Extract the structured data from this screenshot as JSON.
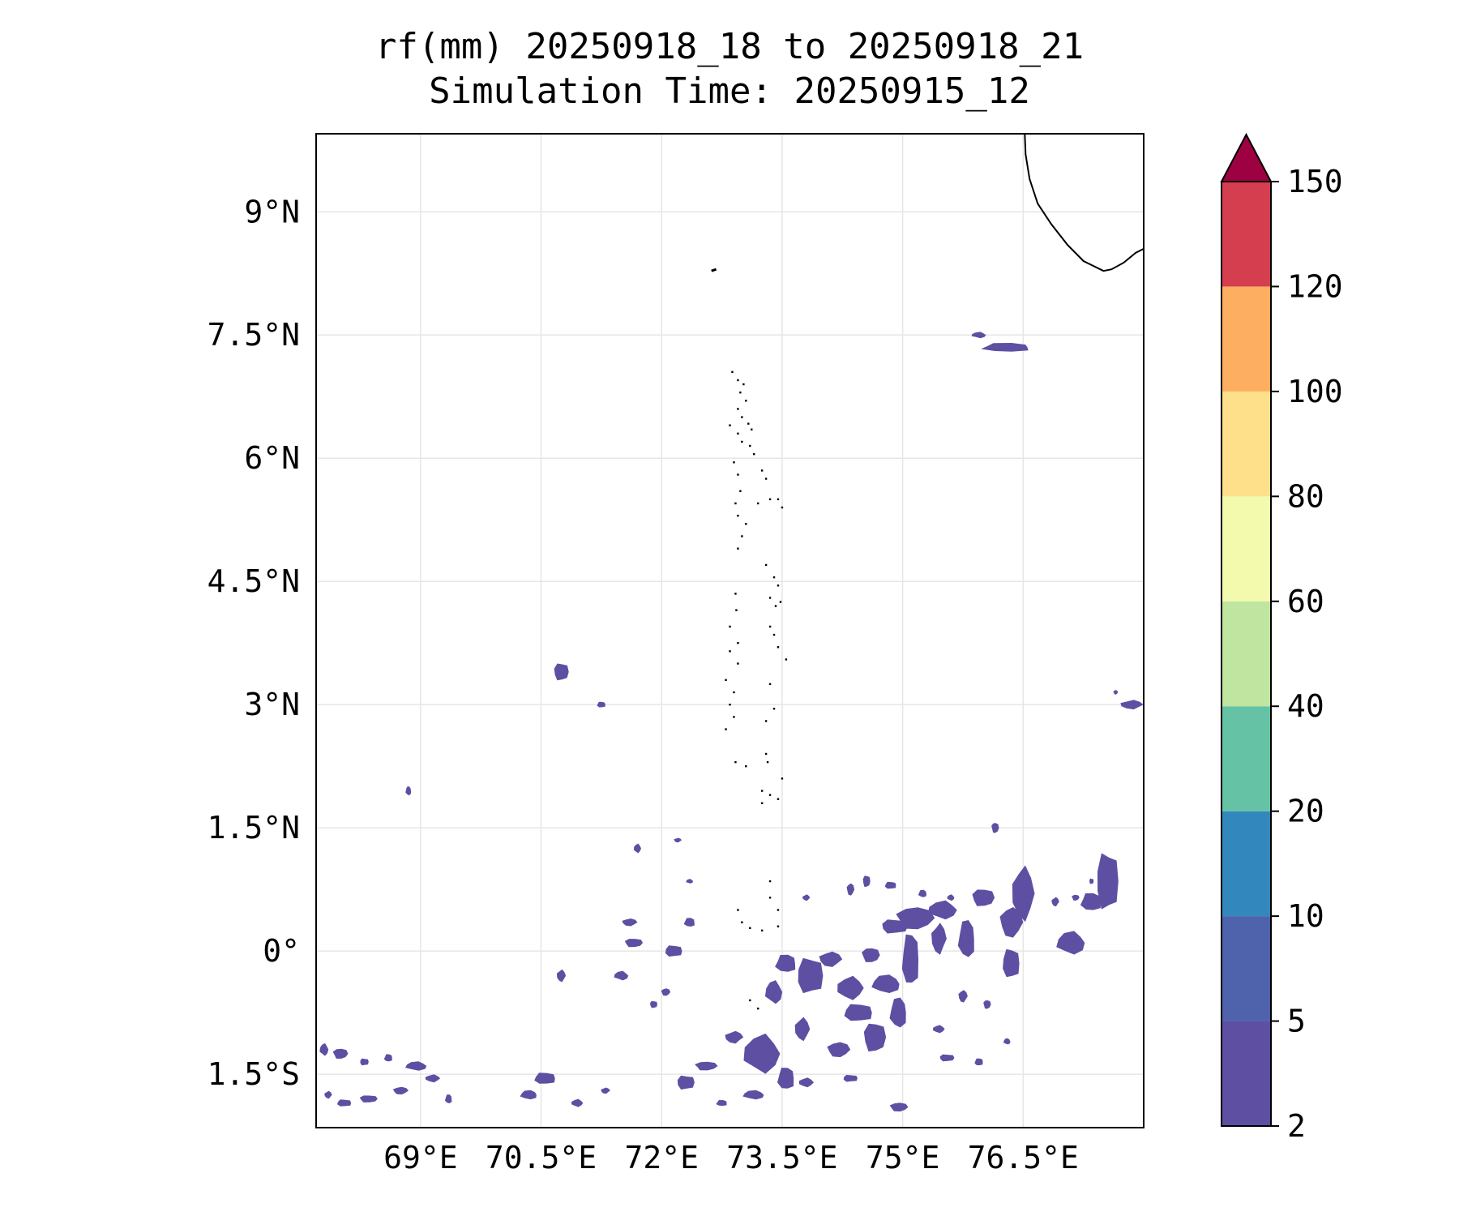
{
  "title": {
    "line1": "rf(mm) 20250918_18 to 20250918_21",
    "line2": "Simulation Time: 20250915_12"
  },
  "map": {
    "lon_range": [
      67.7,
      78.0
    ],
    "lat_range": [
      -2.15,
      9.95
    ],
    "gridlines": true,
    "lon_ticks": [
      {
        "value": 69.0,
        "label": "69°E"
      },
      {
        "value": 70.5,
        "label": "70.5°E"
      },
      {
        "value": 72.0,
        "label": "72°E"
      },
      {
        "value": 73.5,
        "label": "73.5°E"
      },
      {
        "value": 75.0,
        "label": "75°E"
      },
      {
        "value": 76.5,
        "label": "76.5°E"
      }
    ],
    "lat_ticks": [
      {
        "value": 9.0,
        "label": "9°N"
      },
      {
        "value": 7.5,
        "label": "7.5°N"
      },
      {
        "value": 6.0,
        "label": "6°N"
      },
      {
        "value": 4.5,
        "label": "4.5°N"
      },
      {
        "value": 3.0,
        "label": "3°N"
      },
      {
        "value": 1.5,
        "label": "1.5°N"
      },
      {
        "value": 0.0,
        "label": "0°"
      },
      {
        "value": -1.5,
        "label": "1.5°S"
      }
    ],
    "coastline_india": [
      [
        76.52,
        9.95
      ],
      [
        76.53,
        9.7
      ],
      [
        76.58,
        9.4
      ],
      [
        76.68,
        9.1
      ],
      [
        76.85,
        8.85
      ],
      [
        77.05,
        8.6
      ],
      [
        77.25,
        8.4
      ],
      [
        77.5,
        8.28
      ],
      [
        77.6,
        8.3
      ],
      [
        77.75,
        8.38
      ],
      [
        77.9,
        8.5
      ],
      [
        78.0,
        8.55
      ]
    ],
    "coastline_lakshadweep": [
      [
        72.62,
        8.28
      ],
      [
        72.68,
        8.3
      ]
    ],
    "coastline_maldives_islands": [
      [
        72.88,
        7.05
      ],
      [
        72.95,
        6.95
      ],
      [
        73.02,
        6.9
      ],
      [
        72.98,
        6.8
      ],
      [
        73.05,
        6.7
      ],
      [
        72.95,
        6.6
      ],
      [
        73.0,
        6.5
      ],
      [
        73.08,
        6.42
      ],
      [
        73.12,
        6.35
      ],
      [
        72.85,
        6.4
      ],
      [
        72.95,
        6.3
      ],
      [
        73.0,
        6.2
      ],
      [
        73.1,
        6.15
      ],
      [
        73.15,
        6.05
      ],
      [
        72.9,
        5.95
      ],
      [
        72.95,
        5.8
      ],
      [
        72.98,
        5.6
      ],
      [
        72.92,
        5.45
      ],
      [
        73.25,
        5.85
      ],
      [
        73.3,
        5.75
      ],
      [
        73.35,
        5.5
      ],
      [
        73.45,
        5.5
      ],
      [
        73.5,
        5.4
      ],
      [
        73.2,
        5.45
      ],
      [
        72.95,
        5.3
      ],
      [
        73.05,
        5.2
      ],
      [
        73.0,
        5.05
      ],
      [
        72.95,
        4.9
      ],
      [
        73.3,
        4.7
      ],
      [
        73.4,
        4.55
      ],
      [
        73.45,
        4.45
      ],
      [
        73.35,
        4.3
      ],
      [
        73.42,
        4.2
      ],
      [
        73.48,
        4.25
      ],
      [
        72.92,
        4.35
      ],
      [
        72.93,
        4.15
      ],
      [
        72.85,
        3.95
      ],
      [
        72.95,
        3.75
      ],
      [
        72.85,
        3.65
      ],
      [
        72.95,
        3.5
      ],
      [
        73.35,
        3.95
      ],
      [
        73.4,
        3.85
      ],
      [
        73.45,
        3.7
      ],
      [
        73.55,
        3.55
      ],
      [
        72.8,
        3.3
      ],
      [
        72.9,
        3.15
      ],
      [
        72.85,
        3.0
      ],
      [
        72.9,
        2.85
      ],
      [
        72.8,
        2.7
      ],
      [
        73.3,
        2.8
      ],
      [
        73.4,
        2.95
      ],
      [
        73.35,
        3.25
      ],
      [
        72.92,
        2.3
      ],
      [
        73.05,
        2.25
      ],
      [
        73.3,
        2.4
      ],
      [
        73.32,
        2.3
      ],
      [
        73.25,
        1.95
      ],
      [
        73.35,
        1.9
      ],
      [
        73.45,
        1.85
      ],
      [
        73.5,
        2.1
      ],
      [
        73.25,
        1.8
      ],
      [
        73.35,
        0.85
      ],
      [
        73.35,
        0.65
      ],
      [
        73.45,
        0.5
      ],
      [
        72.95,
        0.5
      ],
      [
        73.0,
        0.35
      ],
      [
        73.1,
        0.28
      ],
      [
        73.25,
        0.25
      ],
      [
        73.45,
        0.3
      ],
      [
        73.1,
        -0.6
      ],
      [
        73.2,
        -0.7
      ]
    ]
  },
  "rain_patches": [
    [
      76.3,
      7.35,
      0.35,
      0.06
    ],
    [
      75.95,
      7.5,
      0.1,
      0.04
    ],
    [
      77.85,
      3.0,
      0.15,
      0.06
    ],
    [
      77.65,
      3.15,
      0.03,
      0.03
    ],
    [
      70.75,
      3.4,
      0.1,
      0.12
    ],
    [
      71.25,
      3.0,
      0.06,
      0.04
    ],
    [
      68.85,
      1.95,
      0.04,
      0.06
    ],
    [
      71.7,
      1.25,
      0.05,
      0.06
    ],
    [
      72.2,
      1.35,
      0.05,
      0.03
    ],
    [
      76.15,
      1.5,
      0.05,
      0.07
    ],
    [
      77.55,
      0.85,
      0.15,
      0.4
    ],
    [
      77.35,
      0.6,
      0.15,
      0.12
    ],
    [
      77.1,
      0.1,
      0.2,
      0.15
    ],
    [
      76.5,
      0.7,
      0.15,
      0.35
    ],
    [
      76.35,
      0.35,
      0.15,
      0.2
    ],
    [
      76.0,
      0.65,
      0.15,
      0.12
    ],
    [
      76.35,
      -0.15,
      0.12,
      0.2
    ],
    [
      75.8,
      0.15,
      0.12,
      0.25
    ],
    [
      75.5,
      0.5,
      0.2,
      0.12
    ],
    [
      75.45,
      0.15,
      0.1,
      0.2
    ],
    [
      75.15,
      0.4,
      0.25,
      0.15
    ],
    [
      74.9,
      0.3,
      0.18,
      0.1
    ],
    [
      75.1,
      -0.1,
      0.12,
      0.35
    ],
    [
      74.8,
      -0.4,
      0.2,
      0.12
    ],
    [
      74.35,
      -0.45,
      0.18,
      0.15
    ],
    [
      74.1,
      -0.1,
      0.15,
      0.1
    ],
    [
      74.6,
      -0.05,
      0.12,
      0.1
    ],
    [
      73.85,
      -0.3,
      0.18,
      0.25
    ],
    [
      73.55,
      -0.15,
      0.15,
      0.12
    ],
    [
      73.4,
      -0.5,
      0.12,
      0.15
    ],
    [
      73.75,
      -0.95,
      0.1,
      0.15
    ],
    [
      74.2,
      -1.2,
      0.15,
      0.1
    ],
    [
      74.65,
      -1.05,
      0.15,
      0.2
    ],
    [
      74.45,
      -0.75,
      0.2,
      0.12
    ],
    [
      74.95,
      -0.75,
      0.12,
      0.2
    ],
    [
      73.25,
      -1.25,
      0.25,
      0.25
    ],
    [
      72.9,
      -1.05,
      0.12,
      0.08
    ],
    [
      72.55,
      -1.4,
      0.15,
      0.06
    ],
    [
      72.3,
      -1.6,
      0.12,
      0.1
    ],
    [
      73.55,
      -1.55,
      0.12,
      0.15
    ],
    [
      73.15,
      -1.75,
      0.15,
      0.06
    ],
    [
      73.8,
      -1.6,
      0.1,
      0.06
    ],
    [
      71.6,
      0.35,
      0.1,
      0.05
    ],
    [
      71.65,
      0.1,
      0.12,
      0.06
    ],
    [
      72.15,
      0.0,
      0.12,
      0.08
    ],
    [
      72.35,
      0.35,
      0.08,
      0.06
    ],
    [
      71.5,
      -0.3,
      0.1,
      0.06
    ],
    [
      70.75,
      -0.3,
      0.06,
      0.08
    ],
    [
      72.05,
      -0.5,
      0.06,
      0.05
    ],
    [
      71.9,
      -0.65,
      0.05,
      0.05
    ],
    [
      70.55,
      -1.55,
      0.15,
      0.08
    ],
    [
      70.35,
      -1.75,
      0.12,
      0.06
    ],
    [
      70.95,
      -1.85,
      0.08,
      0.05
    ],
    [
      71.3,
      -1.7,
      0.06,
      0.04
    ],
    [
      68.0,
      -1.25,
      0.1,
      0.07
    ],
    [
      68.3,
      -1.35,
      0.06,
      0.05
    ],
    [
      68.6,
      -1.3,
      0.06,
      0.05
    ],
    [
      68.95,
      -1.4,
      0.15,
      0.06
    ],
    [
      69.15,
      -1.55,
      0.1,
      0.05
    ],
    [
      68.75,
      -1.7,
      0.1,
      0.05
    ],
    [
      68.35,
      -1.8,
      0.12,
      0.05
    ],
    [
      68.05,
      -1.85,
      0.1,
      0.05
    ],
    [
      69.35,
      -1.8,
      0.05,
      0.06
    ],
    [
      67.8,
      -1.2,
      0.06,
      0.08
    ],
    [
      67.85,
      -1.75,
      0.05,
      0.05
    ],
    [
      74.95,
      -1.9,
      0.12,
      0.06
    ],
    [
      75.55,
      -1.3,
      0.1,
      0.05
    ],
    [
      75.95,
      -1.35,
      0.06,
      0.05
    ],
    [
      76.3,
      -1.1,
      0.05,
      0.04
    ],
    [
      75.45,
      -0.95,
      0.08,
      0.05
    ],
    [
      75.75,
      -0.55,
      0.06,
      0.08
    ],
    [
      76.05,
      -0.65,
      0.05,
      0.06
    ],
    [
      74.35,
      -1.55,
      0.1,
      0.05
    ],
    [
      72.75,
      -1.85,
      0.08,
      0.04
    ],
    [
      72.35,
      0.85,
      0.05,
      0.03
    ],
    [
      73.8,
      0.65,
      0.05,
      0.04
    ],
    [
      74.35,
      0.75,
      0.05,
      0.08
    ],
    [
      74.55,
      0.85,
      0.05,
      0.08
    ],
    [
      74.85,
      0.8,
      0.08,
      0.05
    ],
    [
      75.25,
      0.7,
      0.06,
      0.05
    ],
    [
      75.6,
      0.65,
      0.05,
      0.04
    ],
    [
      76.9,
      0.6,
      0.05,
      0.06
    ],
    [
      77.15,
      0.65,
      0.05,
      0.04
    ],
    [
      77.35,
      0.85,
      0.03,
      0.04
    ]
  ],
  "colorbar": {
    "levels": [
      "2",
      "5",
      "10",
      "20",
      "40",
      "60",
      "80",
      "100",
      "120",
      "150"
    ],
    "colors": [
      "#5e4fa2",
      "#4f62ac",
      "#3288bd",
      "#66c2a5",
      "#bfe5a0",
      "#f3faad",
      "#fee08b",
      "#fdae61",
      "#d53e4f"
    ],
    "extend_color": "#9e0142",
    "extend": "max"
  },
  "rain_color": "#5e4fa2"
}
